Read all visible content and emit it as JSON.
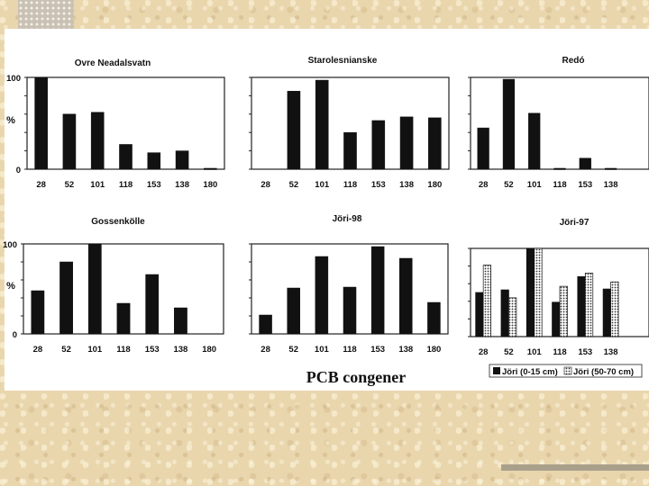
{
  "chart_data": [
    {
      "type": "bar",
      "title": "Ovre Neadalsvatn",
      "categories": [
        "28",
        "52",
        "101",
        "118",
        "153",
        "138",
        "180"
      ],
      "values": [
        100,
        60,
        62,
        27,
        18,
        20,
        1
      ],
      "ylabel": "%",
      "yticks": [
        "100",
        "0"
      ],
      "ylim": [
        0,
        100
      ]
    },
    {
      "type": "bar",
      "title": "Starolesnianske",
      "categories": [
        "28",
        "52",
        "101",
        "118",
        "153",
        "138",
        "180"
      ],
      "values": [
        0,
        85,
        97,
        40,
        53,
        57,
        56
      ],
      "ylim": [
        0,
        100
      ]
    },
    {
      "type": "bar",
      "title": "Redó",
      "categories": [
        "28",
        "52",
        "101",
        "118",
        "153",
        "138"
      ],
      "values": [
        45,
        98,
        61,
        1,
        12,
        1
      ],
      "ylim": [
        0,
        100
      ]
    },
    {
      "type": "bar",
      "title": "Gossenkölle",
      "categories": [
        "28",
        "52",
        "101",
        "118",
        "153",
        "138",
        "180"
      ],
      "values": [
        48,
        80,
        100,
        34,
        66,
        29,
        0
      ],
      "ylabel": "%",
      "yticks": [
        "100",
        "0"
      ],
      "ylim": [
        0,
        100
      ]
    },
    {
      "type": "bar",
      "title": "Jöri-98",
      "categories": [
        "28",
        "52",
        "101",
        "118",
        "153",
        "138",
        "180"
      ],
      "values": [
        21,
        51,
        86,
        52,
        97,
        84,
        35
      ],
      "ylim": [
        0,
        100
      ]
    },
    {
      "type": "bar",
      "title": "Jöri-97",
      "categories": [
        "28",
        "52",
        "101",
        "118",
        "153",
        "138"
      ],
      "series": [
        {
          "name": "Jöri (0-15 cm)",
          "values": [
            50,
            53,
            100,
            39,
            68,
            54
          ],
          "color": "#111111"
        },
        {
          "name": "Jöri (50-70 cm)",
          "values": [
            81,
            44,
            100,
            57,
            72,
            62
          ],
          "color": "#dcdcdc"
        }
      ],
      "ylim": [
        0,
        100
      ],
      "legend": "bottom"
    }
  ],
  "x_title": "PCB congener"
}
